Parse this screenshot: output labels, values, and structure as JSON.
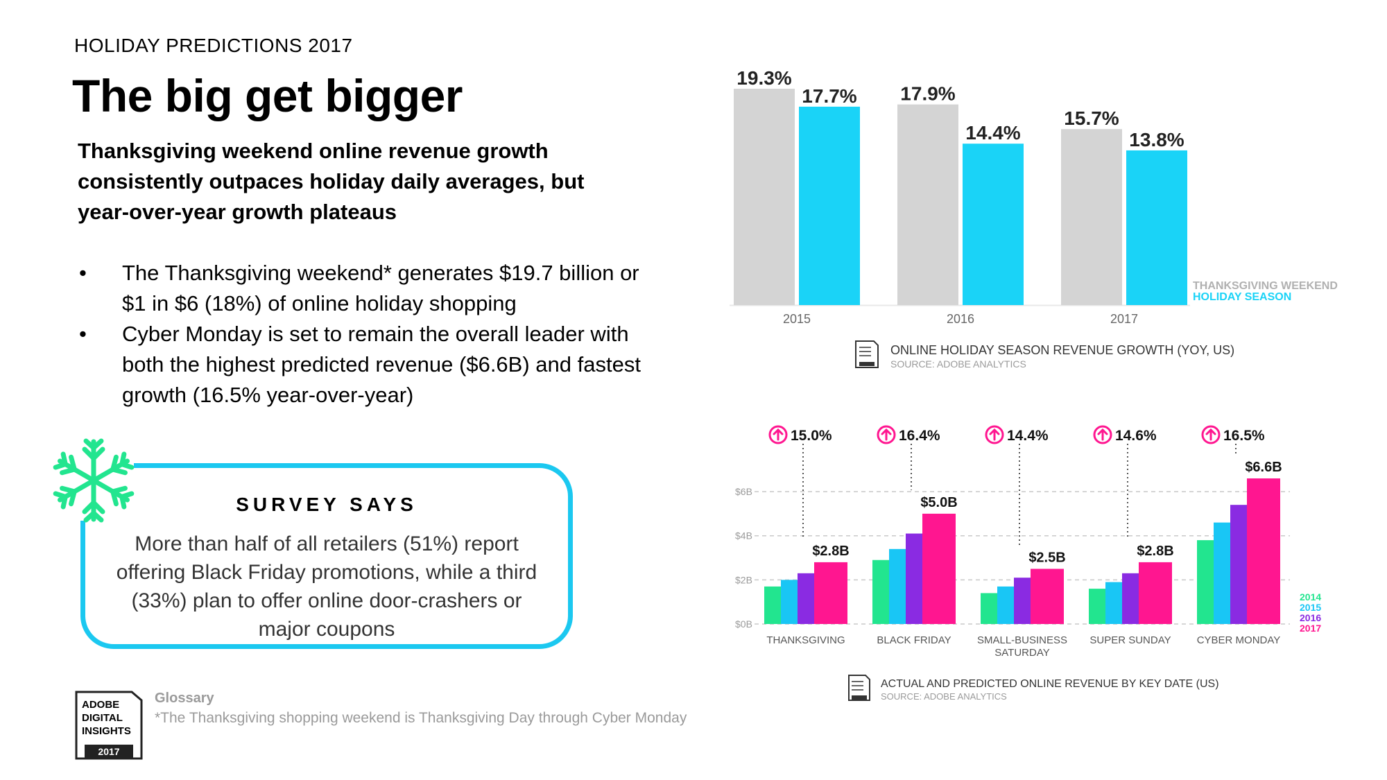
{
  "header": {
    "eyebrow": "HOLIDAY PREDICTIONS 2017",
    "headline": "The big get bigger",
    "subhead": "Thanksgiving weekend online revenue growth consistently outpaces holiday daily averages, but year-over-year growth plateaus"
  },
  "bullets": [
    "The Thanksgiving weekend* generates $19.7 billion or $1 in $6 (18%) of online holiday shopping",
    "Cyber Monday is set to remain the overall leader with both the highest predicted revenue ($6.6B) and fastest growth (16.5% year-over-year)"
  ],
  "survey": {
    "title": "SURVEY SAYS",
    "text": "More than half of all retailers (51%) report offering Black Friday promotions, while a third (33%) plan to offer online door-crashers or major coupons"
  },
  "footer": {
    "logo_lines": [
      "ADOBE",
      "DIGITAL",
      "INSIGHTS"
    ],
    "logo_year": "2017",
    "glossary_label": "Glossary",
    "glossary_note": "*The Thanksgiving shopping weekend is Thanksgiving Day through Cyber Monday"
  },
  "colors": {
    "gray": "#d4d4d4",
    "cyan": "#1ad3f7",
    "green": "#22e58f",
    "blue": "#19c6f5",
    "purple": "#8a2be2",
    "magenta": "#ff1690",
    "border": "#1bc8f0"
  },
  "icons": {
    "snowflake": "snowflake-icon",
    "arrow": "arrow-up-circle-icon"
  },
  "chart_data": [
    {
      "type": "bar",
      "categories": [
        "2015",
        "2016",
        "2017"
      ],
      "series": [
        {
          "name": "THANKSGIVING WEEKEND",
          "values": [
            19.3,
            17.9,
            15.7
          ],
          "labels": [
            "19.3%",
            "17.9%",
            "15.7%"
          ],
          "color": "#d4d4d4"
        },
        {
          "name": "HOLIDAY SEASON",
          "values": [
            17.7,
            14.4,
            13.8
          ],
          "labels": [
            "17.7%",
            "14.4%",
            "13.8%"
          ],
          "color": "#1ad3f7"
        }
      ],
      "ylim": [
        0,
        19.3
      ],
      "legend": "bottom-right",
      "caption": "ONLINE HOLIDAY SEASON REVENUE GROWTH (YOY, US)",
      "source": "SOURCE: ADOBE ANALYTICS"
    },
    {
      "type": "bar",
      "categories": [
        "THANKSGIVING",
        "BLACK FRIDAY",
        "SMALL-BUSINESS SATURDAY",
        "SUPER SUNDAY",
        "CYBER MONDAY"
      ],
      "series": [
        {
          "name": "2014",
          "values": [
            1.7,
            2.9,
            1.4,
            1.6,
            3.8
          ],
          "color": "#22e58f"
        },
        {
          "name": "2015",
          "values": [
            2.0,
            3.4,
            1.7,
            1.9,
            4.6
          ],
          "color": "#19c6f5"
        },
        {
          "name": "2016",
          "values": [
            2.3,
            4.1,
            2.1,
            2.3,
            5.4
          ],
          "color": "#8a2be2"
        },
        {
          "name": "2017",
          "values": [
            2.8,
            5.0,
            2.5,
            2.8,
            6.6
          ],
          "color": "#ff1690"
        }
      ],
      "value_labels": [
        "$2.8B",
        "$5.0B",
        "$2.5B",
        "$2.8B",
        "$6.6B"
      ],
      "growth_labels": [
        "15.0%",
        "16.4%",
        "14.4%",
        "14.6%",
        "16.5%"
      ],
      "yticks": [
        {
          "value": 0,
          "label": "$0B"
        },
        {
          "value": 2,
          "label": "$2B"
        },
        {
          "value": 4,
          "label": "$4B"
        },
        {
          "value": 6,
          "label": "$6B"
        }
      ],
      "ylim": [
        0,
        6.6
      ],
      "grid": true,
      "legend": "right",
      "caption": "ACTUAL AND PREDICTED ONLINE REVENUE BY KEY DATE (US)",
      "source": "SOURCE: ADOBE ANALYTICS"
    }
  ]
}
